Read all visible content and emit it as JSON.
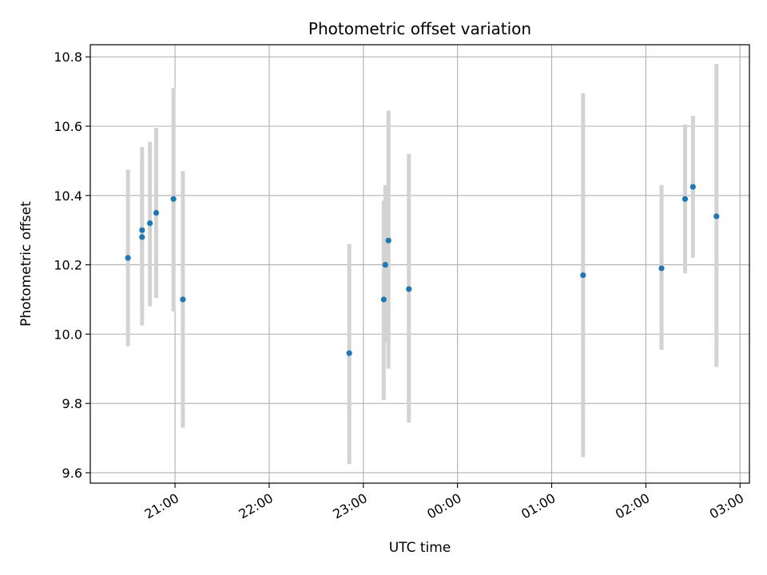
{
  "chart_data": {
    "type": "scatter",
    "title": "Photometric offset variation",
    "xlabel": "UTC time",
    "ylabel": "Photometric offset",
    "x_unit": "time_of_night",
    "xlim": [
      "20:06",
      "03:06"
    ],
    "ylim": [
      9.57,
      10.835
    ],
    "grid": true,
    "x_ticks": [
      "21:00",
      "22:00",
      "23:00",
      "00:00",
      "01:00",
      "02:00",
      "03:00"
    ],
    "y_ticks": [
      9.6,
      9.8,
      10.0,
      10.2,
      10.4,
      10.6,
      10.8
    ],
    "colors": {
      "point": "#1f77b4",
      "errorbar": "#d3d3d3",
      "grid": "#b0b0b0"
    },
    "points": [
      {
        "x": "20:30",
        "y": 10.22,
        "ylow": 9.965,
        "yhigh": 10.475
      },
      {
        "x": "20:39",
        "y": 10.3,
        "ylow": 10.085,
        "yhigh": 10.5
      },
      {
        "x": "20:39",
        "y": 10.28,
        "ylow": 10.025,
        "yhigh": 10.54
      },
      {
        "x": "20:44",
        "y": 10.32,
        "ylow": 10.08,
        "yhigh": 10.555
      },
      {
        "x": "20:48",
        "y": 10.35,
        "ylow": 10.105,
        "yhigh": 10.595
      },
      {
        "x": "20:59",
        "y": 10.39,
        "ylow": 10.065,
        "yhigh": 10.71
      },
      {
        "x": "21:05",
        "y": 10.1,
        "ylow": 9.73,
        "yhigh": 10.47
      },
      {
        "x": "22:51",
        "y": 9.945,
        "ylow": 9.625,
        "yhigh": 10.26
      },
      {
        "x": "23:13",
        "y": 10.1,
        "ylow": 9.81,
        "yhigh": 10.385
      },
      {
        "x": "23:14",
        "y": 10.2,
        "ylow": 9.975,
        "yhigh": 10.43
      },
      {
        "x": "23:16",
        "y": 10.27,
        "ylow": 9.9,
        "yhigh": 10.645
      },
      {
        "x": "23:29",
        "y": 10.13,
        "ylow": 9.745,
        "yhigh": 10.52
      },
      {
        "x": "01:20",
        "y": 10.17,
        "ylow": 9.645,
        "yhigh": 10.695
      },
      {
        "x": "02:10",
        "y": 10.19,
        "ylow": 9.955,
        "yhigh": 10.43
      },
      {
        "x": "02:25",
        "y": 10.39,
        "ylow": 10.175,
        "yhigh": 10.605
      },
      {
        "x": "02:30",
        "y": 10.425,
        "ylow": 10.22,
        "yhigh": 10.63
      },
      {
        "x": "02:45",
        "y": 10.34,
        "ylow": 9.905,
        "yhigh": 10.78
      }
    ]
  }
}
